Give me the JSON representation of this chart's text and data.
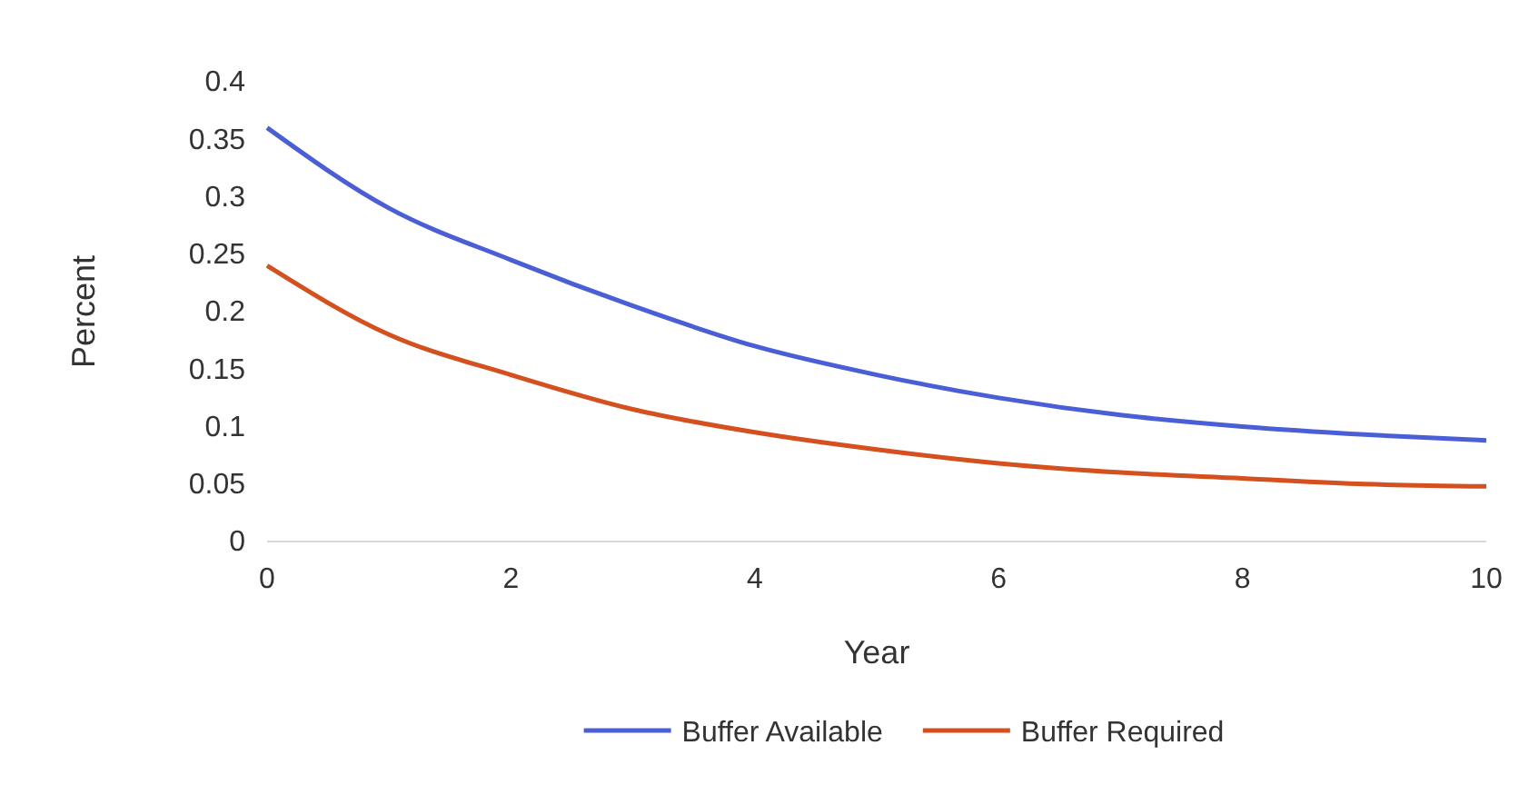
{
  "chart_data": {
    "type": "line",
    "xlabel": "Year",
    "ylabel": "Percent",
    "x": [
      0,
      1,
      2,
      3,
      4,
      5,
      6,
      7,
      8,
      9,
      10
    ],
    "series": [
      {
        "name": "Buffer Available",
        "color": "#4a5fd6",
        "values": [
          0.36,
          0.29,
          0.245,
          0.205,
          0.17,
          0.145,
          0.125,
          0.11,
          0.1,
          0.093,
          0.088
        ]
      },
      {
        "name": "Buffer Required",
        "color": "#d4501e",
        "values": [
          0.24,
          0.18,
          0.145,
          0.115,
          0.095,
          0.08,
          0.068,
          0.06,
          0.055,
          0.05,
          0.048
        ]
      }
    ],
    "xlim": [
      0,
      10
    ],
    "xticks": [
      0,
      2,
      4,
      6,
      8,
      10
    ],
    "ylim": [
      0,
      0.4
    ],
    "yticks": [
      0,
      0.05,
      0.1,
      0.15,
      0.2,
      0.25,
      0.3,
      0.35,
      0.4
    ],
    "grid": false,
    "legend": "bottom",
    "marker": "none",
    "line_style": "solid"
  }
}
